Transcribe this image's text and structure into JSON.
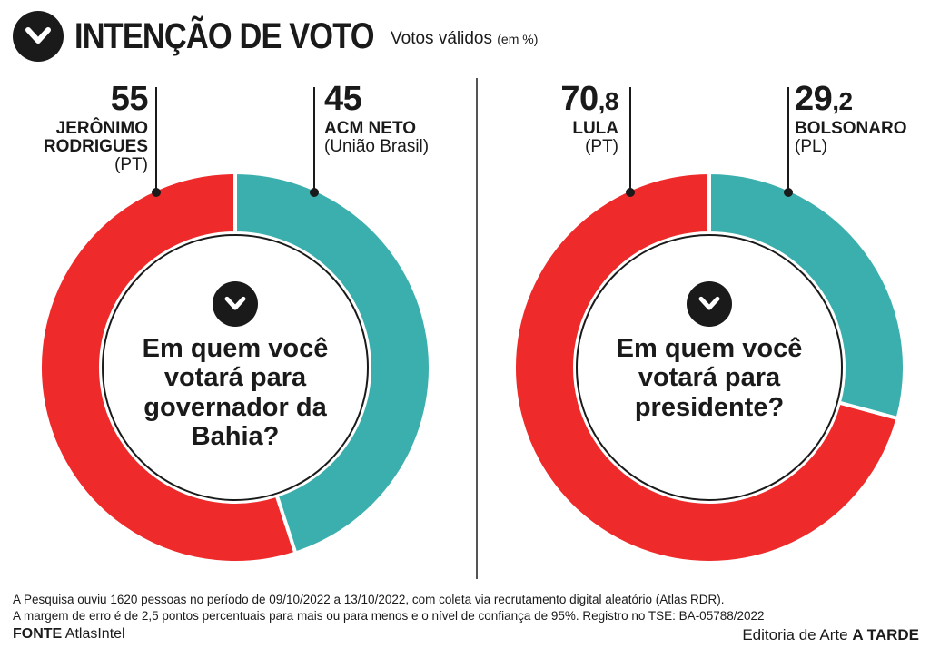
{
  "header": {
    "title": "INTENÇÃO DE VOTO",
    "subtitle": "Votos válidos",
    "subtitle_unit": "(em %)"
  },
  "colors": {
    "red": "#ee2a2a",
    "teal": "#3aafad",
    "dark": "#1a1a1a"
  },
  "chart_data": [
    {
      "type": "pie",
      "question": [
        "Em quem você",
        "votará para",
        "governador da",
        "Bahia?"
      ],
      "series": [
        {
          "name": "JERÔNIMO RODRIGUES",
          "name_lines": [
            "JERÔNIMO",
            "RODRIGUES"
          ],
          "party": "(PT)",
          "value": 55,
          "value_int": "55",
          "value_dec": "",
          "color": "#ee2a2a"
        },
        {
          "name": "ACM NETO",
          "name_lines": [
            "ACM NETO"
          ],
          "party": "(União Brasil)",
          "value": 45,
          "value_int": "45",
          "value_dec": "",
          "color": "#3aafad"
        }
      ]
    },
    {
      "type": "pie",
      "question": [
        "Em quem você",
        "votará para",
        "presidente?"
      ],
      "series": [
        {
          "name": "LULA",
          "name_lines": [
            "LULA"
          ],
          "party": "(PT)",
          "value": 70.8,
          "value_int": "70",
          "value_dec": ",8",
          "color": "#ee2a2a"
        },
        {
          "name": "BOLSONARO",
          "name_lines": [
            "BOLSONARO"
          ],
          "party": "(PL)",
          "value": 29.2,
          "value_int": "29",
          "value_dec": ",2",
          "color": "#3aafad"
        }
      ]
    }
  ],
  "footer": {
    "note1": "A Pesquisa ouviu 1620 pessoas no período de 09/10/2022 a 13/10/2022, com coleta via recrutamento digital aleatório (Atlas RDR).",
    "note2": "A margem de erro é de 2,5 pontos percentuais para mais ou para menos e o nível de confiança de 95%. Registro no TSE: BA-05788/2022",
    "source_label": "FONTE",
    "source": "AtlasIntel",
    "credit_prefix": "Editoria de Arte",
    "credit_brand": "A TARDE"
  }
}
